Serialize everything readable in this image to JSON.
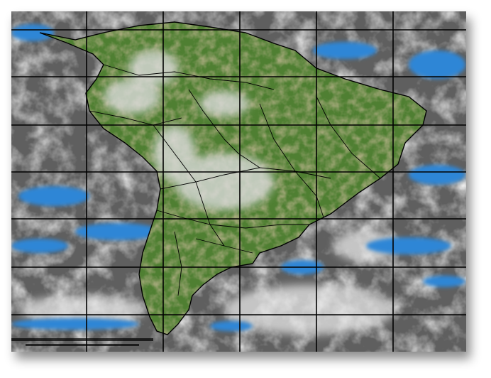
{
  "image": {
    "subject": "satellite-infrared-composite",
    "colors": {
      "ocean_cloudfree": "#606060",
      "clouds": "#e6e6e6",
      "cold_ocean": "#2f86d6",
      "land": "#4f7f32",
      "land_dry": "#8a7a50",
      "borders": "#000000",
      "grid": "#000000"
    },
    "grid": {
      "vertical_lines": 5,
      "horizontal_lines": 7
    }
  }
}
